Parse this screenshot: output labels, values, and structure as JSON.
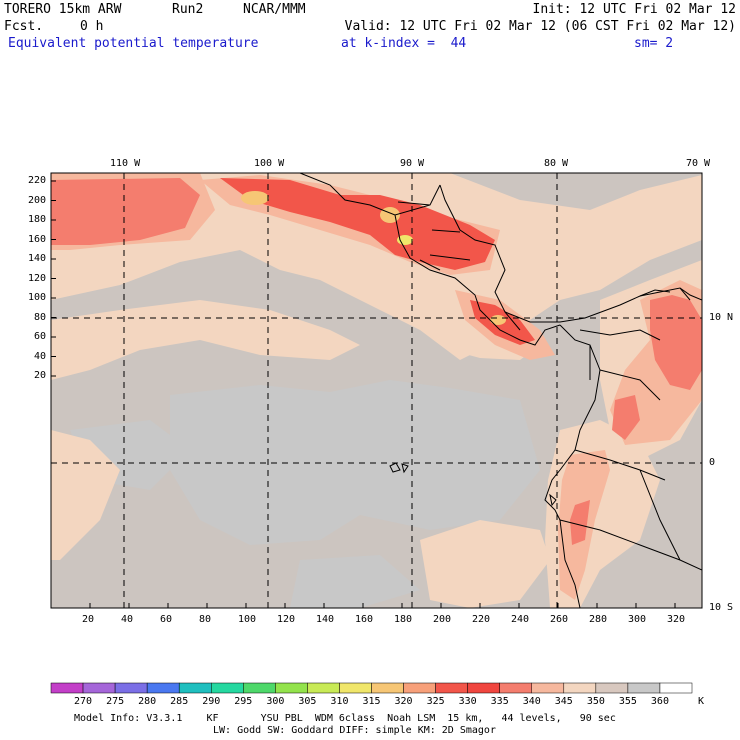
{
  "header": {
    "model": "TORERO 15km ARW",
    "run": "Run2",
    "org": "NCAR/MMM",
    "init": "Init: 12 UTC Fri 02 Mar 12",
    "fcst_label": "Fcst.",
    "fcst_value": "0 h",
    "valid": "Valid: 12 UTC Fri 02 Mar 12 (06 CST Fri 02 Mar 12)",
    "field": "Equivalent potential temperature",
    "level": "at k-index =  44",
    "smooth": "sm= 2"
  },
  "map": {
    "lon_labels": [
      "110 W",
      "100 W",
      "90 W",
      "80 W",
      "70 W"
    ],
    "lat_labels": [
      "10 N",
      "0",
      "10 S"
    ],
    "x_ticks": [
      "20",
      "40",
      "60",
      "80",
      "100",
      "120",
      "140",
      "160",
      "180",
      "200",
      "220",
      "240",
      "260",
      "280",
      "300",
      "320"
    ],
    "y_ticks": [
      "220",
      "200",
      "180",
      "160",
      "140",
      "120",
      "100",
      "80",
      "60",
      "40",
      "20"
    ]
  },
  "colorbar": {
    "labels": [
      "270",
      "275",
      "280",
      "285",
      "290",
      "295",
      "300",
      "305",
      "310",
      "315",
      "320",
      "325",
      "330",
      "335",
      "340",
      "345",
      "350",
      "355",
      "360"
    ],
    "unit": "K",
    "colors": [
      "#c33fc8",
      "#a566d9",
      "#7b6fe6",
      "#4a78f0",
      "#1fbfbf",
      "#25d8a0",
      "#4ed86a",
      "#93e34c",
      "#c8ea56",
      "#f0e66a",
      "#f6c675",
      "#f7a07a",
      "#f2564a",
      "#f0463f",
      "#f47d6e",
      "#f6b89e",
      "#f3d6c0",
      "#d8c8bf",
      "#c8c8c8",
      "#ffffff"
    ]
  },
  "footer": {
    "line1": "Model Info: V3.3.1    KF       YSU PBL  WDM 6class  Noah LSM  15 km,   44 levels,   90 sec",
    "line2": "LW: Godd SW: Goddard DIFF: simple KM: 2D Smagor"
  }
}
